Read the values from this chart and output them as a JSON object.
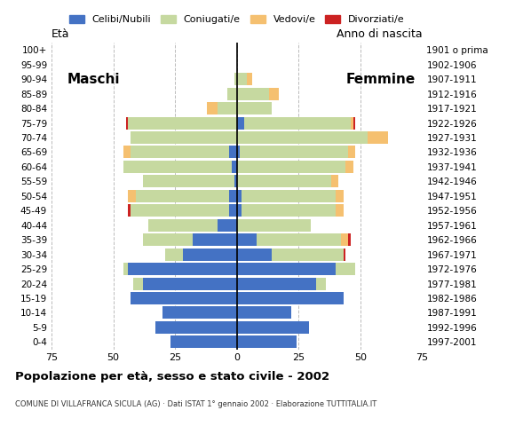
{
  "age_groups": [
    "0-4",
    "5-9",
    "10-14",
    "15-19",
    "20-24",
    "25-29",
    "30-34",
    "35-39",
    "40-44",
    "45-49",
    "50-54",
    "55-59",
    "60-64",
    "65-69",
    "70-74",
    "75-79",
    "80-84",
    "85-89",
    "90-94",
    "95-99",
    "100+"
  ],
  "birth_years": [
    "1997-2001",
    "1992-1996",
    "1987-1991",
    "1982-1986",
    "1977-1981",
    "1972-1976",
    "1967-1971",
    "1962-1966",
    "1957-1961",
    "1952-1956",
    "1947-1951",
    "1942-1946",
    "1937-1941",
    "1932-1936",
    "1927-1931",
    "1922-1926",
    "1917-1921",
    "1912-1916",
    "1907-1911",
    "1902-1906",
    "1901 o prima"
  ],
  "males": {
    "celibi": [
      27,
      33,
      30,
      43,
      38,
      44,
      22,
      18,
      8,
      3,
      3,
      1,
      2,
      3,
      0,
      0,
      0,
      0,
      0,
      0,
      0
    ],
    "coniugati": [
      0,
      0,
      0,
      0,
      4,
      2,
      7,
      20,
      28,
      40,
      38,
      37,
      44,
      40,
      43,
      44,
      8,
      4,
      1,
      0,
      0
    ],
    "vedovi": [
      0,
      0,
      0,
      0,
      0,
      0,
      0,
      0,
      0,
      0,
      3,
      0,
      0,
      3,
      0,
      0,
      4,
      0,
      0,
      0,
      0
    ],
    "divorziati": [
      0,
      0,
      0,
      0,
      0,
      0,
      0,
      0,
      0,
      1,
      0,
      0,
      0,
      0,
      0,
      1,
      0,
      0,
      0,
      0,
      0
    ]
  },
  "females": {
    "nubili": [
      24,
      29,
      22,
      43,
      32,
      40,
      14,
      8,
      0,
      2,
      2,
      0,
      0,
      1,
      0,
      3,
      0,
      0,
      0,
      0,
      0
    ],
    "coniugate": [
      0,
      0,
      0,
      0,
      4,
      8,
      29,
      34,
      30,
      38,
      38,
      38,
      44,
      44,
      53,
      43,
      14,
      13,
      4,
      0,
      0
    ],
    "vedove": [
      0,
      0,
      0,
      0,
      0,
      0,
      0,
      3,
      0,
      3,
      3,
      3,
      3,
      3,
      8,
      1,
      0,
      4,
      2,
      0,
      0
    ],
    "divorziate": [
      0,
      0,
      0,
      0,
      0,
      0,
      1,
      1,
      0,
      0,
      0,
      0,
      0,
      0,
      0,
      1,
      0,
      0,
      0,
      0,
      0
    ]
  },
  "colors": {
    "celibi": "#4472c4",
    "coniugati": "#c6d9a0",
    "vedovi": "#f5c070",
    "divorziati": "#cc2222"
  },
  "title": "Popolazione per età, sesso e stato civile - 2002",
  "subtitle": "COMUNE DI VILLAFRANCA SICULA (AG) · Dati ISTAT 1° gennaio 2002 · Elaborazione TUTTITALIA.IT",
  "xlabel_male": "Maschi",
  "xlabel_female": "Femmine",
  "ylabel": "Età",
  "ylabel_right": "Anno di nascita",
  "xlim": 75,
  "background_color": "#ffffff",
  "grid_color": "#aaaaaa"
}
